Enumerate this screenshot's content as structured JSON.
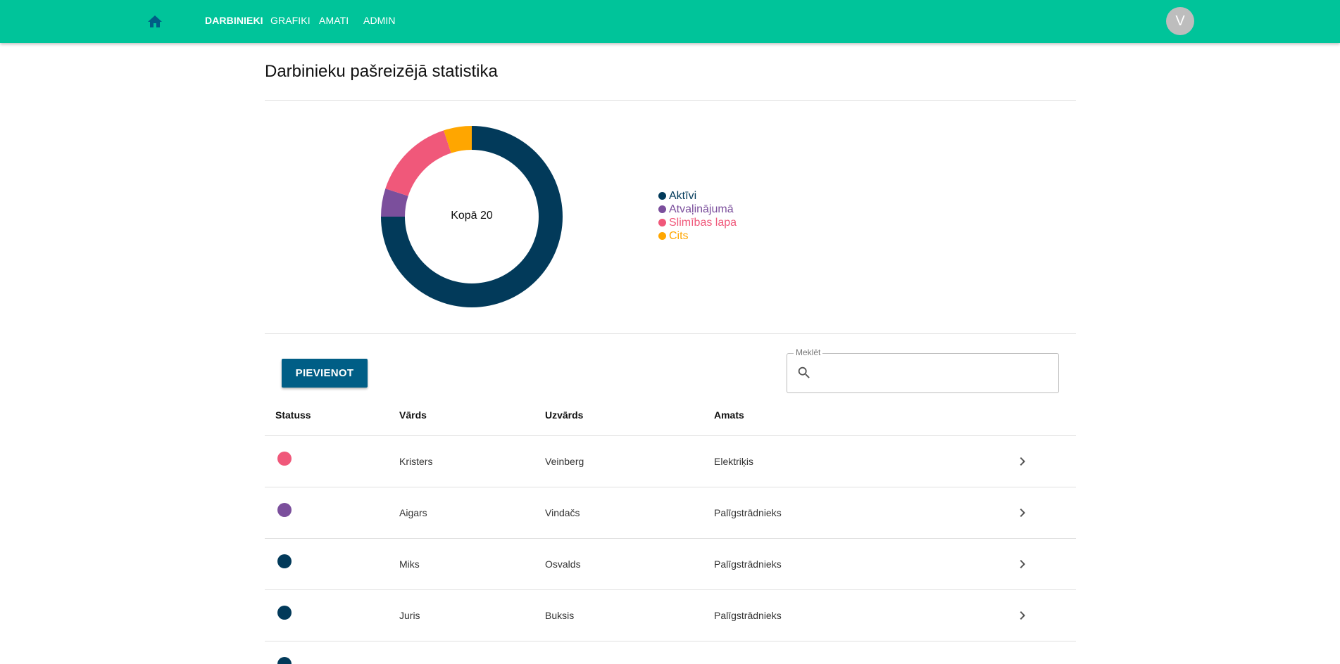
{
  "nav": {
    "items": [
      {
        "label": "DARBINIEKI",
        "active": true
      },
      {
        "label": "GRAFIKI",
        "active": false
      },
      {
        "label": "AMATI",
        "active": false
      },
      {
        "label": "ADMIN",
        "active": false
      }
    ],
    "avatar_initial": "V"
  },
  "page": {
    "title": "Darbinieku pašreizējā statistika"
  },
  "chart_data": {
    "type": "pie",
    "center_label": "Kopā 20",
    "total": 20,
    "slices": [
      {
        "label": "Aktīvi",
        "value": 15,
        "color": "#023a5a"
      },
      {
        "label": "Atvaļinājumā",
        "value": 1,
        "color": "#7b4f9c"
      },
      {
        "label": "Slimības lapa",
        "value": 3,
        "color": "#f0587a"
      },
      {
        "label": "Cits",
        "value": 1,
        "color": "#ffa600"
      }
    ]
  },
  "toolbar": {
    "add_label": "PIEVIENOT"
  },
  "search": {
    "label": "Meklēt",
    "value": ""
  },
  "table": {
    "headers": {
      "status": "Statuss",
      "first_name": "Vārds",
      "last_name": "Uzvārds",
      "position": "Amats"
    },
    "rows": [
      {
        "status_color": "#f0587a",
        "first_name": "Kristers",
        "last_name": "Veinberg",
        "position": "Elektriķis"
      },
      {
        "status_color": "#7b4f9c",
        "first_name": "Aigars",
        "last_name": "Vindačs",
        "position": "Palīgstrādnieks"
      },
      {
        "status_color": "#023a5a",
        "first_name": "Miks",
        "last_name": "Osvalds",
        "position": "Palīgstrādnieks"
      },
      {
        "status_color": "#023a5a",
        "first_name": "Juris",
        "last_name": "Buksis",
        "position": "Palīgstrādnieks"
      }
    ]
  },
  "icons": {
    "home": "home-icon",
    "search": "search-icon",
    "row_action": "chevron-right-icon"
  },
  "colors": {
    "topbar": "#00c49a",
    "primary_button": "#005e86"
  }
}
